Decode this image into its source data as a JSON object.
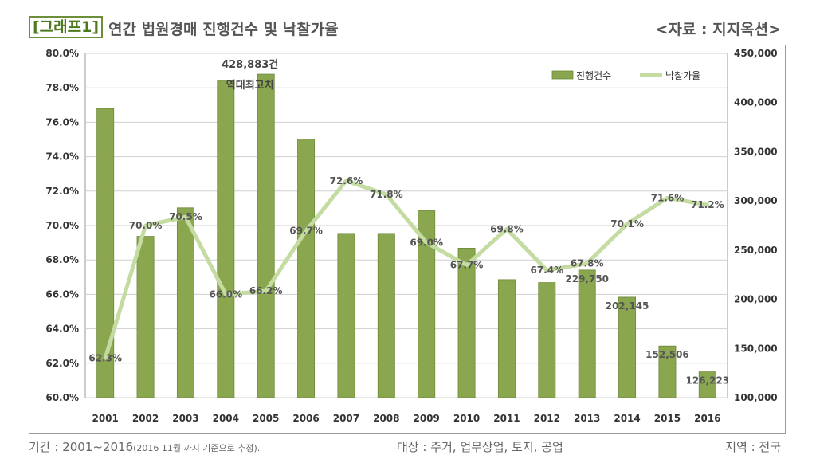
{
  "header": {
    "badge": "[그래프1]",
    "title": "연간 법원경매 진행건수 및 낙찰가율",
    "source": "<자료 : 지지옥션>"
  },
  "footer": {
    "period": "기간 : 2001~2016",
    "period_note": "(2016     11월 까지 기준으로 추정).",
    "target": "대상 : 주거, 업무상업, 토지, 공업",
    "region": "지역 : 전국"
  },
  "colors": {
    "bar": "#8aa64f",
    "bar_stroke": "#6f8a38",
    "line": "#c4dca2",
    "grid": "#cfcfcf",
    "plot_bg": "#ffffff"
  },
  "chart_data": {
    "type": "bar",
    "categories": [
      "2001",
      "2002",
      "2003",
      "2004",
      "2005",
      "2006",
      "2007",
      "2008",
      "2009",
      "2010",
      "2011",
      "2012",
      "2013",
      "2014",
      "2015",
      "2016"
    ],
    "series": [
      {
        "name": "진행건수",
        "type": "bar",
        "axis": "right",
        "values": [
          394000,
          264000,
          293000,
          422000,
          428883,
          363000,
          267000,
          267000,
          290000,
          252000,
          220000,
          217000,
          229750,
          202145,
          152506,
          126223
        ]
      },
      {
        "name": "낙찰가율",
        "type": "line",
        "axis": "left",
        "values": [
          62.3,
          70.0,
          70.5,
          66.0,
          66.2,
          69.7,
          72.6,
          71.8,
          69.0,
          67.7,
          69.8,
          67.4,
          67.8,
          70.1,
          71.6,
          71.2
        ]
      }
    ],
    "line_labels": [
      "62.3%",
      "70.0%",
      "70.5%",
      "66.0%",
      "66.2%",
      "69.7%",
      "72.6%",
      "71.8%",
      "69.0%",
      "67.7%",
      "69.8%",
      "67.4%",
      "67.8%",
      "70.1%",
      "71.6%",
      "71.2%"
    ],
    "bar_labels": [
      {
        "index": 12,
        "text": "229,750"
      },
      {
        "index": 13,
        "text": "202,145"
      },
      {
        "index": 14,
        "text": "152,506"
      },
      {
        "index": 15,
        "text": "126,223"
      }
    ],
    "annotation": {
      "index": 4,
      "line1": "428,883건",
      "line2": "역대최고치"
    },
    "left_axis": {
      "ylim": [
        60,
        80
      ],
      "ticks": [
        60,
        62,
        64,
        66,
        68,
        70,
        72,
        74,
        76,
        78,
        80
      ],
      "tick_labels": [
        "60.0%",
        "62.0%",
        "64.0%",
        "66.0%",
        "68.0%",
        "70.0%",
        "72.0%",
        "74.0%",
        "76.0%",
        "78.0%",
        "80.0%"
      ]
    },
    "right_axis": {
      "ylim": [
        100000,
        450000
      ],
      "ticks": [
        100000,
        150000,
        200000,
        250000,
        300000,
        350000,
        400000,
        450000
      ],
      "tick_labels": [
        "100,000",
        "150,000",
        "200,000",
        "250,000",
        "300,000",
        "350,000",
        "400,000",
        "450,000"
      ]
    },
    "legend": {
      "position": "top-right",
      "items": [
        "진행건수",
        "낙찰가율"
      ]
    },
    "grid": true
  }
}
